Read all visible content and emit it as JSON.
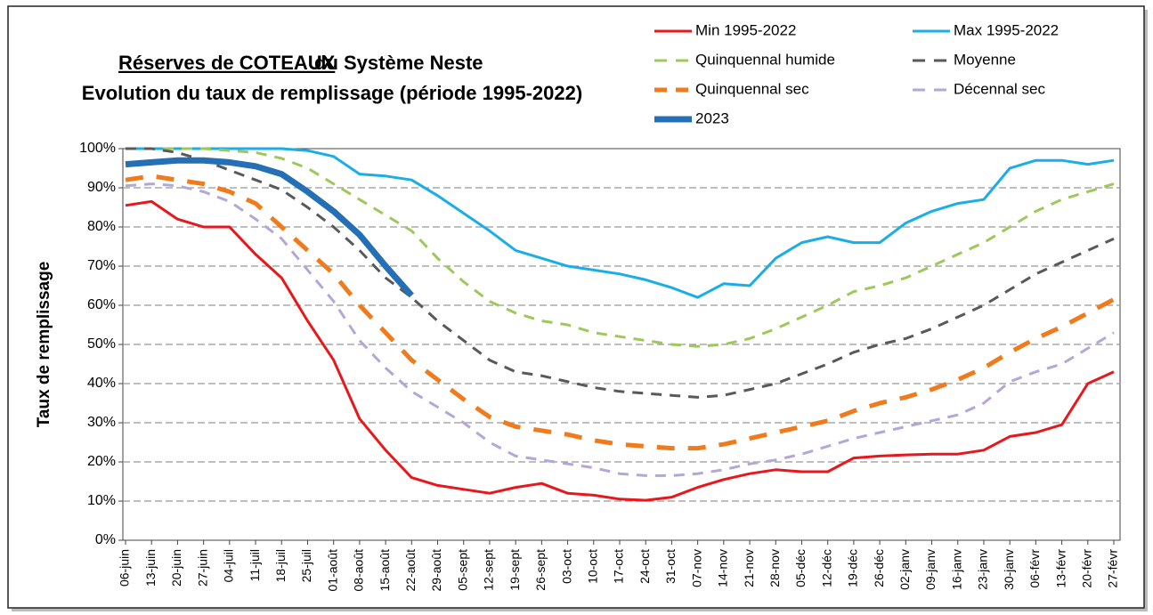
{
  "chart_data": {
    "type": "line",
    "title_underlined": "Réserves de COTEAUX",
    "title_rest": "du Système Neste",
    "subtitle": "Evolution du taux de remplissage  (période 1995-2022)",
    "y_label": "Taux de remplissage",
    "grid": true,
    "legend": "top-right",
    "categories": [
      "06-juin",
      "13-juin",
      "20-juin",
      "27-juin",
      "04-juil",
      "11-juil",
      "18-juil",
      "25-juil",
      "01-août",
      "08-août",
      "15-août",
      "22-août",
      "29-août",
      "05-sept",
      "12-sept",
      "19-sept",
      "26-sept",
      "03-oct",
      "10-oct",
      "17-oct",
      "24-oct",
      "31-oct",
      "07-nov",
      "14-nov",
      "21-nov",
      "28-nov",
      "05-déc",
      "12-déc",
      "19-déc",
      "26-déc",
      "02-janv",
      "09-janv",
      "16-janv",
      "23-janv",
      "30-janv",
      "06-févr",
      "13-févr",
      "20-févr",
      "27-févr"
    ],
    "ylim": [
      0,
      100
    ],
    "yticks": [
      {
        "value": 0,
        "label": "0%"
      },
      {
        "value": 10,
        "label": "10%"
      },
      {
        "value": 20,
        "label": "20%"
      },
      {
        "value": 30,
        "label": "30%"
      },
      {
        "value": 40,
        "label": "40%"
      },
      {
        "value": 50,
        "label": "50%"
      },
      {
        "value": 60,
        "label": "60%"
      },
      {
        "value": 70,
        "label": "70%"
      },
      {
        "value": 80,
        "label": "80%"
      },
      {
        "value": 90,
        "label": "90%"
      },
      {
        "value": 100,
        "label": "100%"
      }
    ],
    "series": [
      {
        "name": "Min 1995-2022",
        "color": "#e8171c",
        "dashed": false,
        "linewidth": 3,
        "values": [
          85.5,
          86.5,
          82,
          80,
          80,
          73,
          67,
          56,
          46,
          31,
          23,
          16,
          14,
          13,
          12,
          13.5,
          14.5,
          12,
          11.5,
          10.5,
          10.2,
          11,
          13.5,
          15.5,
          17,
          18,
          17.5,
          17.5,
          21,
          21.5,
          21.8,
          22,
          22,
          23,
          26.5,
          27.5,
          29.5,
          40,
          43
        ]
      },
      {
        "name": "Max 1995-2022",
        "color": "#1aade8",
        "dashed": false,
        "linewidth": 3,
        "values": [
          100,
          100,
          100,
          100,
          100,
          100,
          100,
          99.5,
          98,
          93.5,
          93,
          92,
          88,
          83.5,
          79,
          74,
          72,
          70,
          69,
          68,
          66.5,
          64.5,
          62,
          65.5,
          65,
          72,
          76,
          77.5,
          76,
          76,
          81,
          84,
          86,
          87,
          95,
          97,
          97,
          96,
          97
        ]
      },
      {
        "name": "Quinquennal humide",
        "color": "#9dc85a",
        "dashed": true,
        "linewidth": 3,
        "values": [
          100,
          100,
          100,
          100,
          99.5,
          99,
          97.5,
          95,
          91,
          87,
          83,
          79,
          72,
          66,
          61,
          58,
          56,
          55,
          53,
          52,
          51,
          50,
          49.5,
          50,
          51.5,
          54,
          57,
          60,
          63.5,
          65,
          67,
          70,
          73,
          76,
          80,
          84,
          87,
          89,
          91
        ]
      },
      {
        "name": "Moyenne",
        "color": "#595959",
        "dashed": true,
        "linewidth": 3,
        "values": [
          100,
          100,
          99,
          97,
          94.5,
          92,
          89.5,
          85,
          80,
          74,
          67,
          62,
          56,
          51,
          46,
          43,
          42,
          40.5,
          39,
          38,
          37.5,
          37,
          36.5,
          37,
          38.5,
          40,
          42.5,
          45,
          48,
          50,
          51.5,
          54,
          57,
          60,
          64,
          68,
          71,
          74,
          77
        ]
      },
      {
        "name": "Quinquennal sec",
        "color": "#f07b1d",
        "dashed": true,
        "linewidth": 5,
        "values": [
          92,
          93,
          92,
          91,
          89,
          86,
          80,
          74,
          68,
          60,
          53,
          46,
          41,
          36,
          31.5,
          29,
          28,
          27,
          25.5,
          24.5,
          24,
          23.5,
          23.5,
          24.5,
          26,
          27.5,
          29,
          30.5,
          33,
          35,
          36.5,
          38.5,
          41,
          44,
          48,
          51.5,
          54.5,
          58,
          61.5
        ]
      },
      {
        "name": "Décennal sec",
        "color": "#b4a6d8",
        "dashed": true,
        "linewidth": 3,
        "values": [
          90.5,
          91,
          90.5,
          89,
          86.5,
          82,
          77,
          69,
          61,
          51,
          44,
          38,
          34,
          30,
          25,
          21.5,
          20.5,
          19.5,
          18.5,
          17,
          16.5,
          16.5,
          17,
          18,
          19.5,
          20.5,
          22,
          24,
          26,
          27.5,
          29,
          30.5,
          32,
          35,
          40.5,
          43,
          45,
          49,
          53
        ]
      },
      {
        "name": "2023",
        "color": "#2570b5",
        "dashed": false,
        "linewidth": 7,
        "values": [
          96,
          96.5,
          97,
          97,
          96.5,
          95.5,
          93.5,
          89,
          84,
          78,
          70,
          62.5,
          null,
          null,
          null,
          null,
          null,
          null,
          null,
          null,
          null,
          null,
          null,
          null,
          null,
          null,
          null,
          null,
          null,
          null,
          null,
          null,
          null,
          null,
          null,
          null,
          null,
          null,
          null
        ]
      }
    ]
  }
}
